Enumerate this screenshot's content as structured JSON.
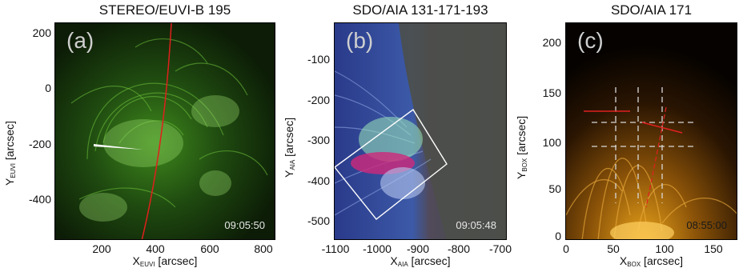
{
  "panels": [
    {
      "title": "STEREO/EUVI-B 195",
      "letter": "(a)",
      "time": "09:05:50",
      "xlabel_main": "X",
      "xlabel_sub": "EUVI",
      "xlabel_unit": " [arcsec]",
      "ylabel_main": "Y",
      "ylabel_sub": "EUVI",
      "ylabel_unit": " [arcsec]",
      "xticks": [
        "200",
        "400",
        "600",
        "800"
      ],
      "yticks": [
        "200",
        "0",
        "-200",
        "-400"
      ]
    },
    {
      "title": "SDO/AIA 131-171-193",
      "letter": "(b)",
      "time": "09:05:48",
      "xlabel_main": "X",
      "xlabel_sub": "AIA",
      "xlabel_unit": " [arcsec]",
      "ylabel_main": "Y",
      "ylabel_sub": "AIA",
      "ylabel_unit": " [arcsec]",
      "xticks": [
        "-1100",
        "-1000",
        "-900",
        "-800",
        "-700"
      ],
      "yticks": [
        "-100",
        "-200",
        "-300",
        "-400",
        "-500"
      ]
    },
    {
      "title": "SDO/AIA 171",
      "letter": "(c)",
      "time": "08:55:00",
      "xlabel_main": "X",
      "xlabel_sub": "BOX",
      "xlabel_unit": " [arcsec]",
      "ylabel_main": "Y",
      "ylabel_sub": "BOX",
      "ylabel_unit": " [arcsec]",
      "xticks": [
        "0",
        "50",
        "100",
        "150"
      ],
      "yticks": [
        "200",
        "150",
        "100",
        "50",
        "0"
      ]
    }
  ]
}
